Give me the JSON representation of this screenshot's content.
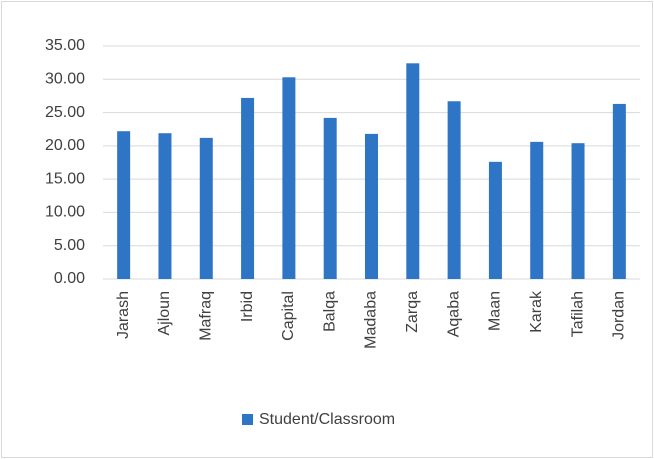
{
  "chart_data": {
    "type": "bar",
    "categories": [
      "Jarash",
      "Ajloun",
      "Mafraq",
      "Irbid",
      "Capital",
      "Balqa",
      "Madaba",
      "Zarqa",
      "Aqaba",
      "Maan",
      "Karak",
      "Tafilah",
      "Jordan"
    ],
    "series": [
      {
        "name": "Student/Classroom",
        "color": "#2e75c6",
        "values": [
          22.2,
          21.9,
          21.2,
          27.2,
          30.3,
          24.2,
          21.8,
          32.4,
          26.7,
          17.6,
          20.6,
          20.4,
          26.3
        ]
      }
    ],
    "ylim": [
      0,
      35
    ],
    "yticks": [
      {
        "value": 0,
        "label": "0.00"
      },
      {
        "value": 5,
        "label": "5.00"
      },
      {
        "value": 10,
        "label": "10.00"
      },
      {
        "value": 15,
        "label": "15.00"
      },
      {
        "value": 20,
        "label": "20.00"
      },
      {
        "value": 25,
        "label": "25.00"
      },
      {
        "value": 30,
        "label": "30.00"
      },
      {
        "value": 35,
        "label": "35.00"
      }
    ],
    "grid": true,
    "legend": "bottom"
  }
}
